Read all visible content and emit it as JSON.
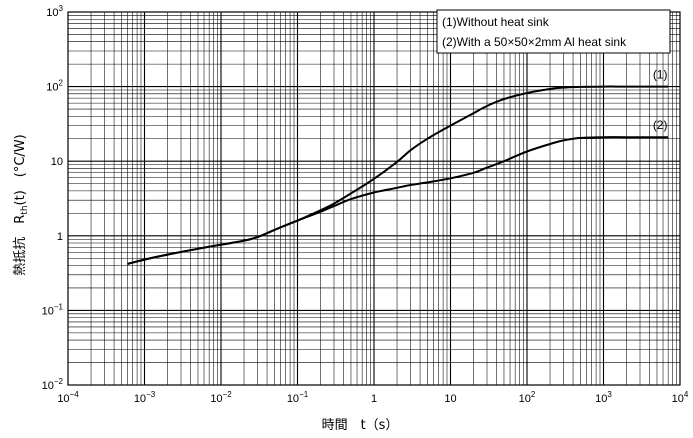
{
  "chart_data": {
    "type": "line",
    "xscale": "log",
    "yscale": "log",
    "xlim": [
      0.0001,
      10000
    ],
    "ylim": [
      0.01,
      1000
    ],
    "grid": true,
    "xlabel": "時間　t（s）",
    "ylabel": {
      "prefix": "熱抵抗　R",
      "sub": "th",
      "suffix": "(t)　(°C/W)"
    },
    "xticks": [
      {
        "base": "10",
        "exp": "−4"
      },
      {
        "base": "10",
        "exp": "−3"
      },
      {
        "base": "10",
        "exp": "−2"
      },
      {
        "base": "10",
        "exp": "−1"
      },
      {
        "base": "1",
        "exp": ""
      },
      {
        "base": "10",
        "exp": ""
      },
      {
        "base": "10",
        "exp": "2"
      },
      {
        "base": "10",
        "exp": "3"
      },
      {
        "base": "10",
        "exp": "4"
      }
    ],
    "yticks": [
      {
        "base": "10",
        "exp": "−2"
      },
      {
        "base": "10",
        "exp": "−1"
      },
      {
        "base": "1",
        "exp": ""
      },
      {
        "base": "10",
        "exp": ""
      },
      {
        "base": "10",
        "exp": "2"
      },
      {
        "base": "10",
        "exp": "3"
      }
    ],
    "legend": {
      "placement": "top-right",
      "entries": [
        "(1)Without heat sink",
        "(2)With a 50×50×2mm Al heat sink"
      ]
    },
    "series": [
      {
        "name": "(1)",
        "x": [
          0.0006,
          0.001,
          0.002,
          0.005,
          0.01,
          0.02,
          0.03,
          0.05,
          0.1,
          0.2,
          0.3,
          0.5,
          1,
          2,
          3,
          5,
          10,
          20,
          30,
          50,
          100,
          200,
          300,
          500,
          1000,
          2000,
          7000
        ],
        "y": [
          0.42,
          0.48,
          0.56,
          0.67,
          0.76,
          0.86,
          0.96,
          1.2,
          1.6,
          2.2,
          2.7,
          3.7,
          5.8,
          9.8,
          14,
          20,
          30,
          44,
          55,
          68,
          82,
          93,
          97,
          99,
          100,
          100,
          100
        ]
      },
      {
        "name": "(2)",
        "x": [
          0.0006,
          0.001,
          0.002,
          0.005,
          0.01,
          0.02,
          0.03,
          0.05,
          0.1,
          0.2,
          0.3,
          0.5,
          1,
          2,
          3,
          5,
          10,
          20,
          30,
          50,
          100,
          200,
          300,
          500,
          1000,
          2000,
          7000
        ],
        "y": [
          0.42,
          0.48,
          0.56,
          0.67,
          0.76,
          0.86,
          0.96,
          1.2,
          1.6,
          2.1,
          2.5,
          3.1,
          3.8,
          4.4,
          4.8,
          5.2,
          5.9,
          7.0,
          8.2,
          10,
          13.5,
          17,
          19,
          20.5,
          21,
          21,
          21
        ]
      }
    ]
  }
}
